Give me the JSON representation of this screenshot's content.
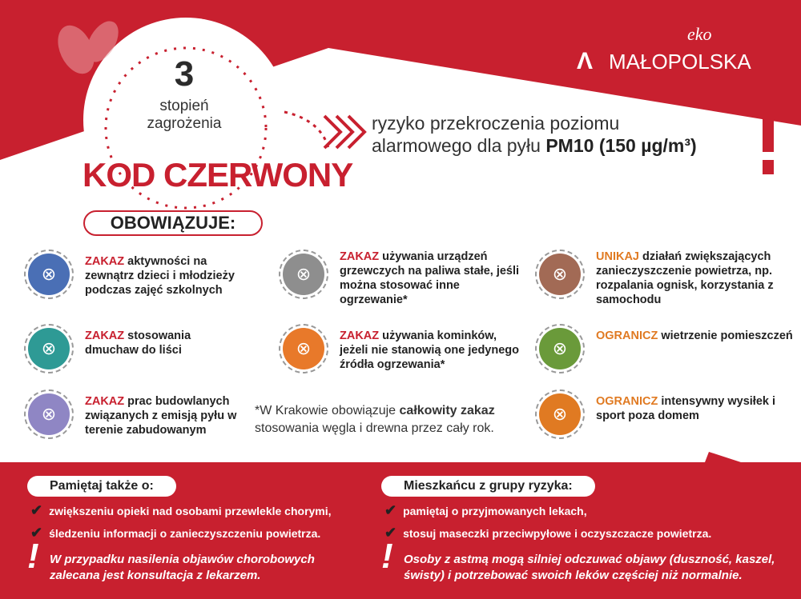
{
  "colors": {
    "red": "#c8202f",
    "white": "#ffffff",
    "orange": "#e07a22"
  },
  "logo": {
    "eko": "eko",
    "brand": "MAŁOPOLSKA"
  },
  "level": {
    "number": "3",
    "label_line1": "stopień",
    "label_line2": "zagrożenia"
  },
  "code_title": "KOD CZERWONY",
  "risk": {
    "line1": "ryzyko przekroczenia poziomu",
    "line2_prefix": "alarmowego dla pyłu ",
    "line2_bold": "PM10 (150 µg/m³)"
  },
  "obowiazuje_label": "OBOWIĄZUJE:",
  "items": [
    {
      "keyword": "ZAKAZ",
      "text": " aktywności na zewnątrz dzieci i młodzieży podczas zajęć szkolnych",
      "icon": "children-outdoor-icon",
      "color": "#4a6fb5",
      "kw": "r"
    },
    {
      "keyword": "ZAKAZ",
      "text": " stosowania dmuchaw do liści",
      "icon": "leaf-blower-icon",
      "color": "#2e9a95",
      "kw": "r"
    },
    {
      "keyword": "ZAKAZ",
      "text": " prac budowlanych związanych z emisją pyłu w terenie zabudowanym",
      "icon": "construction-worker-icon",
      "color": "#8f86c4",
      "kw": "r"
    },
    {
      "keyword": "ZAKAZ",
      "text": " używania urządzeń grzewczych na paliwa stałe, jeśli można stosować inne ogrzewanie*",
      "icon": "solid-fuel-heater-icon",
      "color": "#8e8e8e",
      "kw": "r"
    },
    {
      "keyword": "ZAKAZ",
      "text": " używania kominków, jeżeli nie stanowią one jedynego źródła ogrzewania*",
      "icon": "fireplace-icon",
      "color": "#e8792a",
      "kw": "r"
    },
    {
      "keyword": "UNIKAJ",
      "text": " działań zwiększających zanieczyszczenie powietrza, np. rozpalania ognisk, korzystania z samochodu",
      "icon": "bonfire-car-icon",
      "color": "#a26a55",
      "kw": "o"
    },
    {
      "keyword": "OGRANICZ",
      "text": " wietrzenie pomieszczeń",
      "icon": "window-ventilation-icon",
      "color": "#6a9a3a",
      "kw": "o"
    },
    {
      "keyword": "OGRANICZ",
      "text": " intensywny wysiłek i sport poza domem",
      "icon": "sport-cycling-icon",
      "color": "#e07a22",
      "kw": "o"
    }
  ],
  "krakow_note": {
    "prefix": "*W Krakowie obowiązuje ",
    "bold": "całkowity zakaz",
    "line2": "stosowania węgla i drewna przez cały rok."
  },
  "remember": {
    "title": "Pamiętaj także o:",
    "checks": [
      "zwiększeniu opieki nad osobami przewlekle chorymi,",
      "śledzeniu informacji o zanieczyszczeniu powietrza."
    ],
    "warning": [
      "W przypadku nasilenia objawów chorobowych",
      "zalecana jest konsultacja z lekarzem."
    ]
  },
  "risk_group": {
    "title": "Mieszkańcu z grupy ryzyka:",
    "checks": [
      "pamiętaj o przyjmowanych lekach,",
      "stosuj maseczki przeciwpyłowe i oczyszczacze powietrza."
    ],
    "warning": [
      "Osoby z astmą mogą silniej odczuwać objawy (duszność, kaszel,",
      "świsty) i potrzebować swoich leków częściej niż normalnie."
    ]
  }
}
